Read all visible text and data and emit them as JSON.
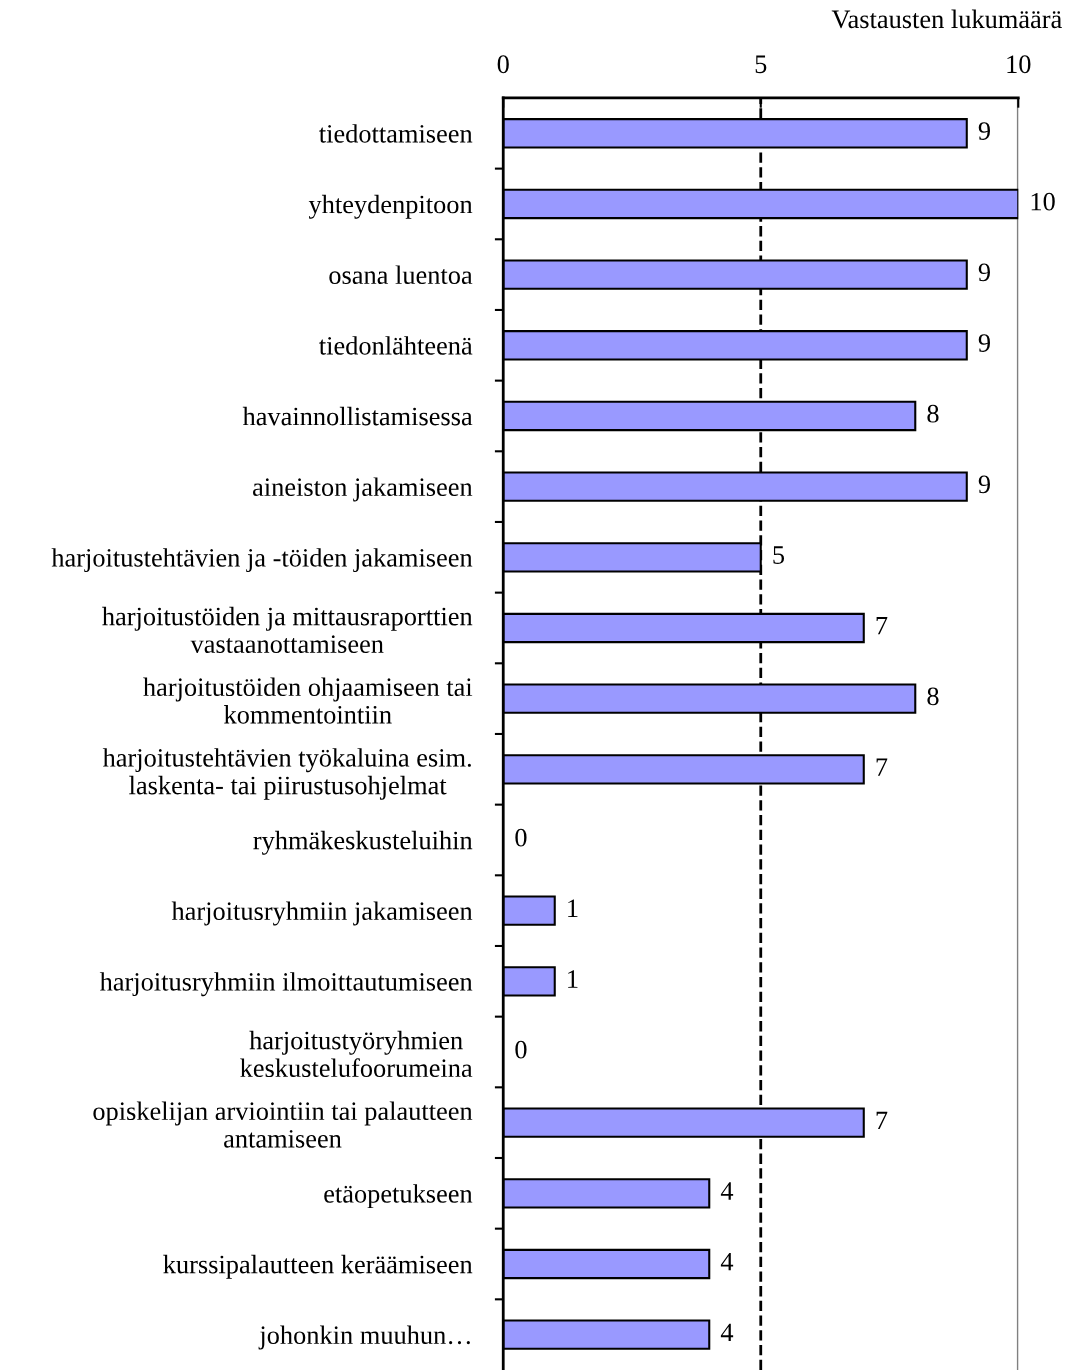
{
  "chart_data": {
    "type": "bar",
    "orientation": "horizontal",
    "xlabel": "Vastausten lukumäärä",
    "categories": [
      "tiedottamiseen",
      "yhteydenpitoon",
      "osana luentoa",
      "tiedonlähteenä",
      "havainnollistamisessa",
      "aineiston jakamiseen",
      "harjoitustehtävien ja -töiden jakamiseen",
      "harjoitustöiden ja mittausraporttien\nvastaanottamiseen",
      "harjoitustöiden ohjaamiseen tai\nkommentointiin",
      "harjoitustehtävien työkaluina esim.\nlaskenta- tai piirustusohjelmat",
      "ryhmäkeskusteluihin",
      "harjoitusryhmiin jakamiseen",
      "harjoitusryhmiin ilmoittautumiseen",
      "harjoitustyöryhmien\nkeskustelufoorumeina",
      "opiskelijan arviointiin tai palautteen\nantamiseen",
      "etäopetukseen",
      "kurssipalautteen keräämiseen",
      "johonkin muuhun…"
    ],
    "values": [
      9,
      10,
      9,
      9,
      8,
      9,
      5,
      7,
      8,
      7,
      0,
      1,
      1,
      0,
      7,
      4,
      4,
      4
    ],
    "color": "#9999ff",
    "data_labels": true,
    "xlim": [
      0,
      10
    ],
    "xticks": [
      0,
      5,
      10
    ],
    "grid": false,
    "ref_lines": [
      {
        "axis": "x",
        "value": 5,
        "color": "#000000",
        "line_style": "dashed"
      },
      {
        "axis": "x",
        "value": 10,
        "color": "#808080",
        "line_style": "solid"
      }
    ]
  }
}
